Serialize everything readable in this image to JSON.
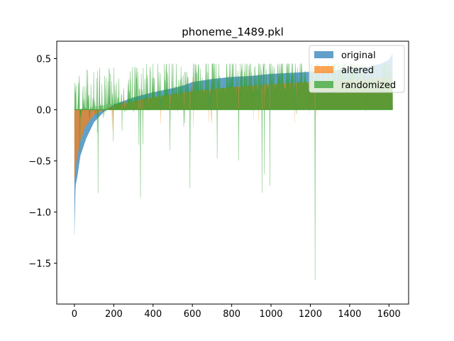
{
  "chart_data": {
    "type": "area",
    "title": "phoneme_1489.pkl",
    "xlabel": "",
    "ylabel": "",
    "xlim": [
      -90,
      1700
    ],
    "ylim": [
      -1.9,
      0.67
    ],
    "xticks": [
      0,
      200,
      400,
      600,
      800,
      1000,
      1200,
      1400,
      1600
    ],
    "xtick_labels": [
      "0",
      "200",
      "400",
      "600",
      "800",
      "1000",
      "1200",
      "1400",
      "1600"
    ],
    "yticks": [
      -1.5,
      -1.0,
      -0.5,
      0.0,
      0.5
    ],
    "ytick_labels": [
      "−1.5",
      "−1.0",
      "−0.5",
      "0.0",
      "0.5"
    ],
    "grid": false,
    "legend_position": "top-right",
    "n_points": 1620,
    "series": [
      {
        "name": "original",
        "color": "#1f77b4",
        "style": "sorted ascending filled area",
        "profile": [
          [
            0,
            -1.22
          ],
          [
            5,
            -0.75
          ],
          [
            15,
            -0.65
          ],
          [
            30,
            -0.45
          ],
          [
            60,
            -0.28
          ],
          [
            100,
            -0.12
          ],
          [
            150,
            -0.02
          ],
          [
            200,
            0.05
          ],
          [
            300,
            0.12
          ],
          [
            400,
            0.17
          ],
          [
            500,
            0.21
          ],
          [
            560,
            0.24
          ],
          [
            600,
            0.27
          ],
          [
            700,
            0.3
          ],
          [
            800,
            0.32
          ],
          [
            900,
            0.33
          ],
          [
            1000,
            0.35
          ],
          [
            1100,
            0.36
          ],
          [
            1200,
            0.37
          ],
          [
            1300,
            0.38
          ],
          [
            1400,
            0.4
          ],
          [
            1500,
            0.42
          ],
          [
            1560,
            0.45
          ],
          [
            1600,
            0.49
          ],
          [
            1619,
            0.55
          ]
        ]
      },
      {
        "name": "altered",
        "color": "#ff7f0e",
        "style": "filled area with spikes",
        "profile": [
          [
            0,
            -0.7
          ],
          [
            10,
            -0.5
          ],
          [
            30,
            -0.3
          ],
          [
            60,
            -0.15
          ],
          [
            100,
            -0.05
          ],
          [
            150,
            0.0
          ],
          [
            200,
            0.04
          ],
          [
            400,
            0.12
          ],
          [
            600,
            0.18
          ],
          [
            800,
            0.22
          ],
          [
            1000,
            0.25
          ],
          [
            1200,
            0.27
          ],
          [
            1400,
            0.29
          ],
          [
            1619,
            0.31
          ]
        ]
      },
      {
        "name": "randomized",
        "color": "#2ca02c",
        "style": "noisy filled area",
        "profile": [
          [
            0,
            0.0
          ],
          [
            200,
            0.06
          ],
          [
            400,
            0.12
          ],
          [
            600,
            0.18
          ],
          [
            800,
            0.22
          ],
          [
            1000,
            0.25
          ],
          [
            1200,
            0.27
          ],
          [
            1400,
            0.28
          ],
          [
            1619,
            0.3
          ]
        ],
        "noise_max": 0.45,
        "noise_min": -1.7
      }
    ]
  }
}
